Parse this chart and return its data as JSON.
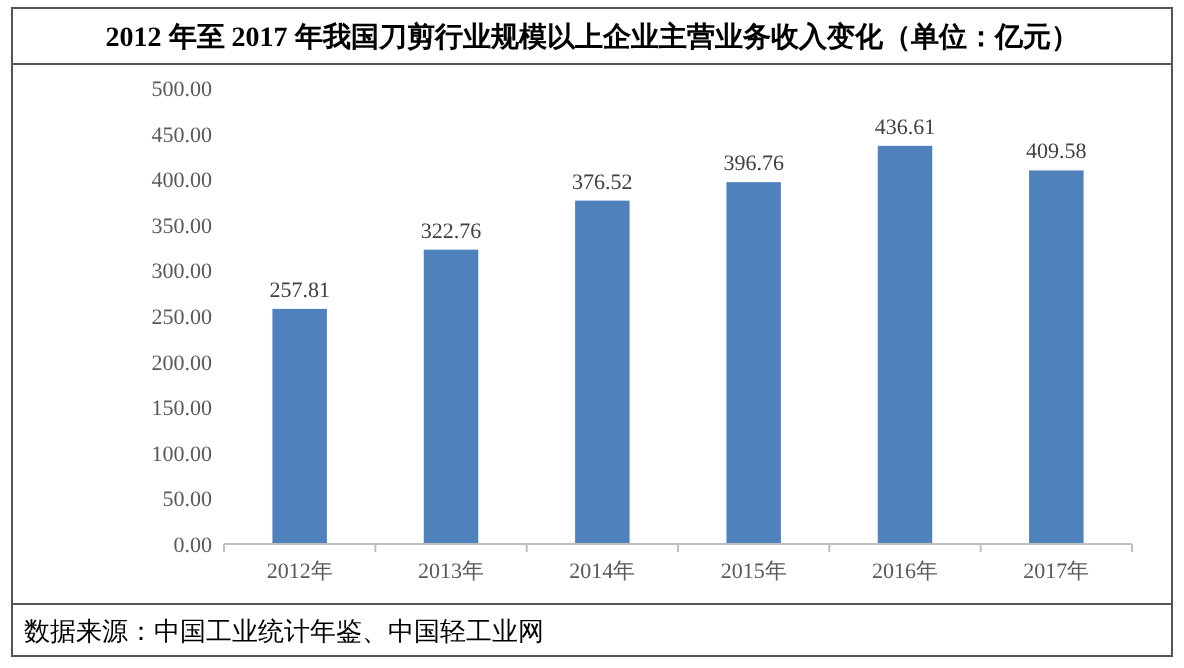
{
  "chart_data": {
    "type": "bar",
    "title": "2012 年至 2017 年我国刀剪行业规模以上企业主营业务收入变化（单位：亿元）",
    "categories": [
      "2012年",
      "2013年",
      "2014年",
      "2015年",
      "2016年",
      "2017年"
    ],
    "values": [
      257.81,
      322.76,
      376.52,
      396.76,
      436.61,
      409.58
    ],
    "color": "#4f81bd",
    "ylim": [
      0,
      500
    ],
    "yticks": [
      {
        "value": 0,
        "label": "0.00"
      },
      {
        "value": 50,
        "label": "50.00"
      },
      {
        "value": 100,
        "label": "100.00"
      },
      {
        "value": 150,
        "label": "150.00"
      },
      {
        "value": 200,
        "label": "200.00"
      },
      {
        "value": 250,
        "label": "250.00"
      },
      {
        "value": 300,
        "label": "300.00"
      },
      {
        "value": 350,
        "label": "350.00"
      },
      {
        "value": 400,
        "label": "400.00"
      },
      {
        "value": 450,
        "label": "450.00"
      },
      {
        "value": 500,
        "label": "500.00"
      }
    ],
    "data_labels": true,
    "annotations": [
      "数据来源：中国工业统计年鉴、中国轻工业网"
    ]
  }
}
